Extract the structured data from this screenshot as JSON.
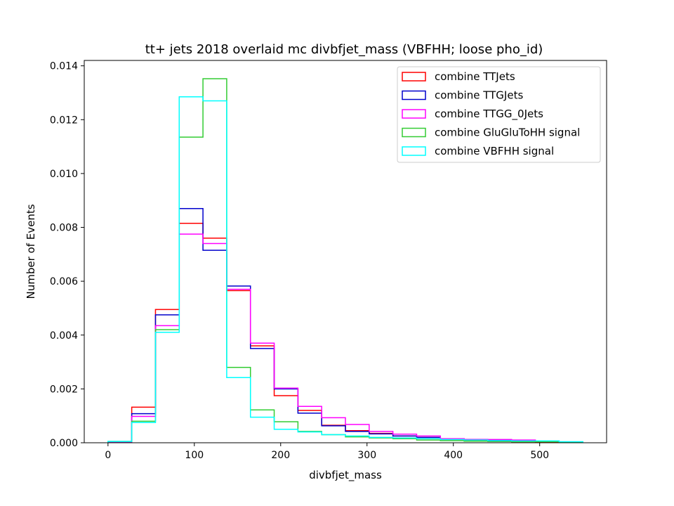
{
  "chart_data": {
    "type": "histogram-step",
    "title": "tt+ jets 2018 overlaid mc divbfjet_mass (VBFHH; loose pho_id)",
    "xlabel": "divbfjet_mass",
    "ylabel": "Number of Events",
    "xlim": [
      -27.5,
      577.5
    ],
    "ylim": [
      0,
      0.0142
    ],
    "xticks": [
      0,
      100,
      200,
      300,
      400,
      500
    ],
    "yticks": [
      0.0,
      0.002,
      0.004,
      0.006,
      0.008,
      0.01,
      0.012,
      0.014
    ],
    "ytick_labels": [
      "0.000",
      "0.002",
      "0.004",
      "0.006",
      "0.008",
      "0.010",
      "0.012",
      "0.014"
    ],
    "bin_edges": [
      0,
      27.5,
      55,
      82.5,
      110,
      137.5,
      165,
      192.5,
      220,
      247.5,
      275,
      302.5,
      330,
      357.5,
      385,
      412.5,
      440,
      467.5,
      495,
      522.5,
      550
    ],
    "legend_position": "upper right",
    "series": [
      {
        "name": "combine TTJets",
        "color": "#ff0000",
        "values": [
          4e-05,
          0.00132,
          0.00495,
          0.00815,
          0.0076,
          0.00565,
          0.0036,
          0.00175,
          0.0012,
          0.00065,
          0.00045,
          0.00035,
          0.00025,
          0.0002,
          0.00012,
          8e-05,
          5e-05,
          4e-05,
          3e-05,
          2e-05
        ]
      },
      {
        "name": "combine TTGJets",
        "color": "#0000cc",
        "values": [
          4e-05,
          0.00108,
          0.00475,
          0.0087,
          0.00715,
          0.00582,
          0.0035,
          0.002,
          0.0011,
          0.00063,
          0.00042,
          0.00033,
          0.00025,
          0.0002,
          0.00015,
          0.00012,
          0.0001,
          8e-05,
          5e-05,
          3e-05
        ]
      },
      {
        "name": "combine TTGG_0Jets",
        "color": "#ff00ff",
        "values": [
          4e-05,
          0.00098,
          0.00435,
          0.00775,
          0.0074,
          0.0057,
          0.0037,
          0.00203,
          0.00135,
          0.00093,
          0.00068,
          0.00042,
          0.00032,
          0.00025,
          0.00015,
          0.00012,
          0.00012,
          0.0001,
          5e-05,
          3e-05
        ]
      },
      {
        "name": "combine GluGluToHH signal",
        "color": "#33cc33",
        "values": [
          5e-05,
          0.0008,
          0.0042,
          0.01135,
          0.01352,
          0.0028,
          0.00122,
          0.00078,
          0.00042,
          0.0003,
          0.00022,
          0.00018,
          0.00015,
          0.0001,
          8e-05,
          6e-05,
          5e-05,
          4e-05,
          4e-05,
          3e-05
        ]
      },
      {
        "name": "combine VBFHH signal",
        "color": "#00ffff",
        "values": [
          5e-05,
          0.00075,
          0.0041,
          0.01285,
          0.0127,
          0.00242,
          0.00095,
          0.0005,
          0.0004,
          0.0003,
          0.00025,
          0.0002,
          0.00018,
          0.00015,
          0.00012,
          0.0001,
          8e-05,
          7e-05,
          7e-05,
          4e-05
        ]
      }
    ]
  }
}
